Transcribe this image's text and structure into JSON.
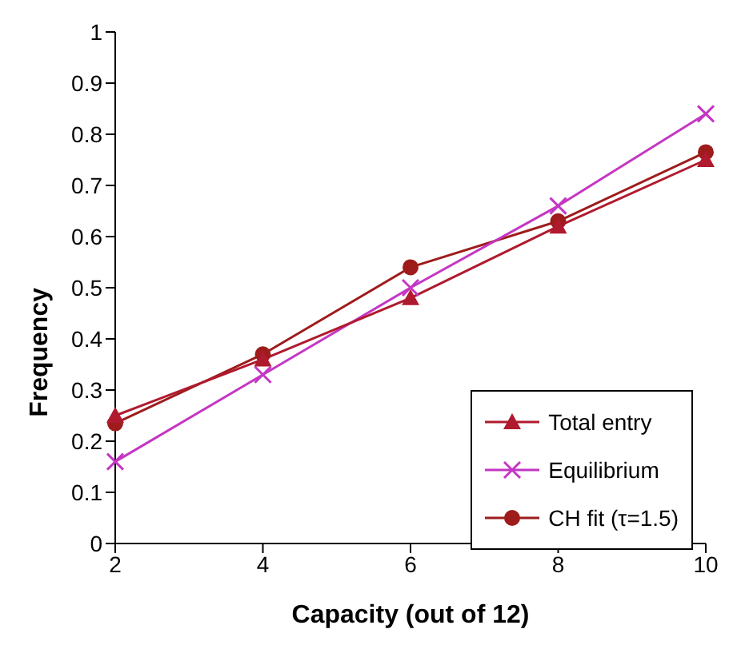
{
  "chart_data": {
    "type": "line",
    "xlabel": "Capacity (out of 12)",
    "ylabel": "Frequency",
    "categories": [
      "2",
      "4",
      "6",
      "8",
      "10"
    ],
    "series": [
      {
        "name": "Total entry",
        "color": "#b01a2e",
        "marker": "triangle",
        "values": [
          0.25,
          0.36,
          0.48,
          0.62,
          0.75
        ]
      },
      {
        "name": "Equilibrium",
        "color": "#c436c4",
        "marker": "cross",
        "values": [
          0.16,
          0.33,
          0.5,
          0.66,
          0.84
        ]
      },
      {
        "name": "CH fit (τ=1.5)",
        "color": "#9e1c1c",
        "marker": "circle",
        "values": [
          0.235,
          0.37,
          0.54,
          0.63,
          0.765
        ]
      }
    ],
    "ylim": [
      0,
      1
    ],
    "yticks": [
      0,
      0.1,
      0.2,
      0.3,
      0.4,
      0.5,
      0.6,
      0.7,
      0.8,
      0.9,
      1
    ],
    "grid": false,
    "legend": "bottom right",
    "line_style": "solid"
  }
}
